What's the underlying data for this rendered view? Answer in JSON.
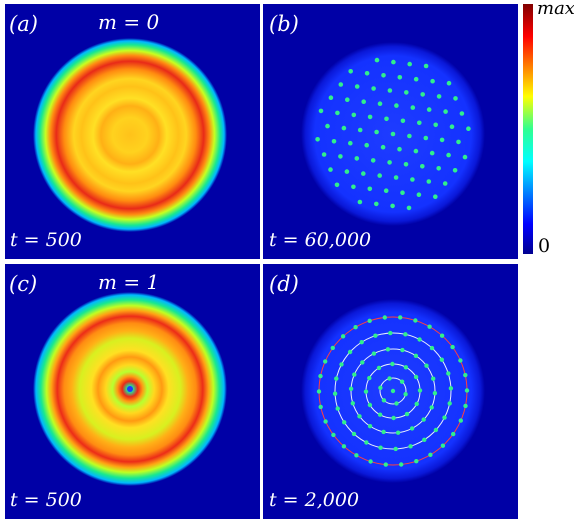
{
  "panels": [
    {
      "letter": "(a)",
      "mode": "m = 0",
      "time": "t = 500"
    },
    {
      "letter": "(b)",
      "mode": "",
      "time": "t = 60,000"
    },
    {
      "letter": "(c)",
      "mode": "m = 1",
      "time": "t = 500"
    },
    {
      "letter": "(d)",
      "mode": "",
      "time": "t = 2,000"
    }
  ],
  "colorbar": {
    "max_label": "max",
    "min_label": "0"
  },
  "colors": {
    "background": "#0000a6",
    "ring_red": "#e8201a",
    "ring_yellow": "#ffd81e",
    "lattice_green": "#30f08c",
    "guide_ring_red": "#ff4040",
    "guide_ring_white": "#e8f0ff"
  }
}
